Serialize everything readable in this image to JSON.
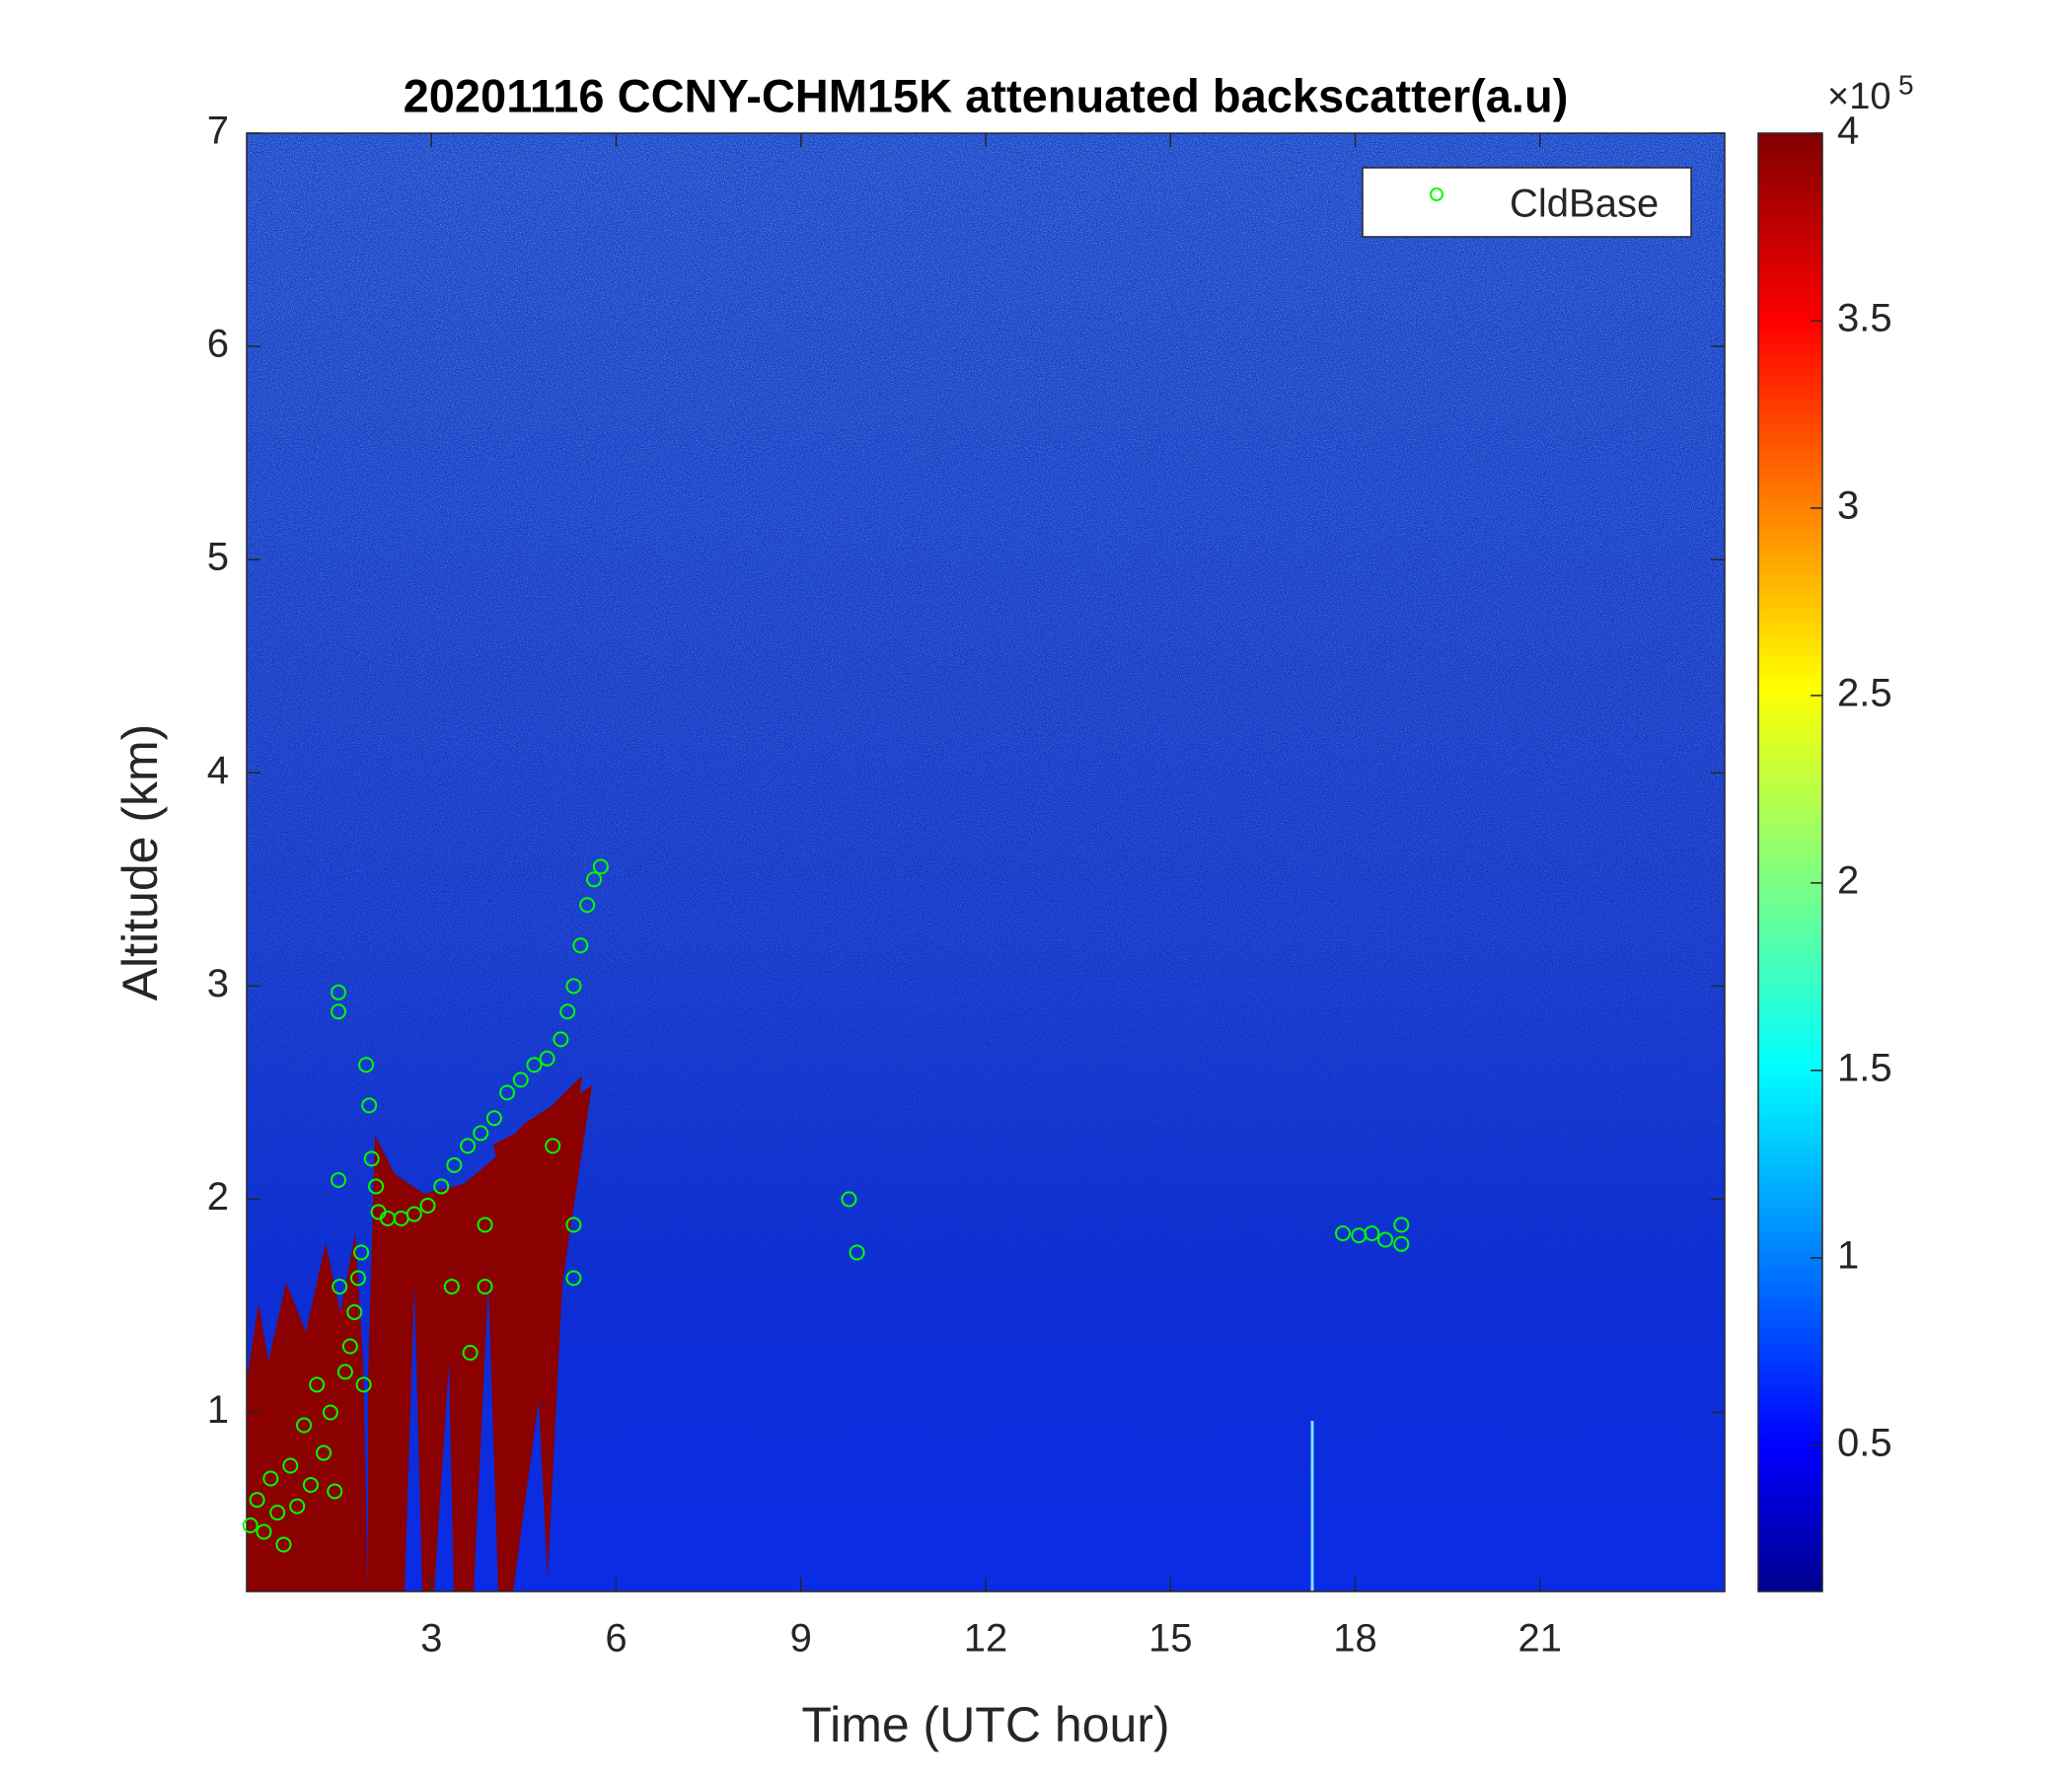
{
  "chart_data": {
    "type": "scatter",
    "title": "20201116 CCNY-CHM15K attenuated backscatter(a.u)",
    "xlabel": "Time (UTC hour)",
    "ylabel": "Altitude (km)",
    "xlim": [
      0,
      24
    ],
    "xticks": [
      3,
      6,
      9,
      12,
      15,
      18,
      21
    ],
    "ylim": [
      0.16,
      7
    ],
    "yticks": [
      1,
      2,
      3,
      4,
      5,
      6,
      7
    ],
    "legend": "northeast",
    "series": [
      {
        "name": "CldBase",
        "color": "#00ff00",
        "x": [
          0.06,
          0.17,
          0.28,
          0.39,
          0.5,
          0.6,
          0.71,
          0.82,
          0.93,
          1.04,
          1.14,
          1.25,
          1.36,
          1.43,
          1.49,
          1.49,
          1.49,
          1.51,
          1.6,
          1.68,
          1.75,
          1.81,
          1.86,
          1.9,
          1.94,
          1.99,
          2.03,
          2.1,
          2.14,
          2.29,
          2.51,
          2.72,
          2.94,
          3.16,
          3.37,
          3.59,
          3.8,
          4.02,
          4.23,
          4.45,
          4.67,
          4.88,
          5.1,
          5.21,
          5.31,
          5.42,
          5.53,
          5.64,
          5.75,
          3.33,
          3.63,
          3.87,
          3.87,
          5.31,
          5.31,
          4.97,
          9.78,
          9.91,
          17.8,
          18.06,
          18.27,
          18.49,
          18.75,
          18.75
        ],
        "y": [
          0.47,
          0.59,
          0.44,
          0.69,
          0.53,
          0.38,
          0.75,
          0.56,
          0.94,
          0.66,
          1.13,
          0.81,
          1.0,
          0.63,
          2.97,
          2.88,
          2.09,
          1.59,
          1.19,
          1.31,
          1.47,
          1.63,
          1.75,
          1.13,
          2.63,
          2.44,
          2.19,
          2.06,
          1.94,
          1.91,
          1.91,
          1.93,
          1.97,
          2.06,
          2.16,
          2.25,
          2.31,
          2.38,
          2.5,
          2.56,
          2.63,
          2.66,
          2.75,
          2.88,
          3.0,
          3.19,
          3.38,
          3.5,
          3.56,
          1.59,
          1.28,
          1.59,
          1.88,
          1.63,
          1.88,
          2.25,
          2.0,
          1.75,
          1.84,
          1.83,
          1.84,
          1.81,
          1.88,
          1.79
        ]
      }
    ],
    "colorbar": {
      "colormap": "jet",
      "clim": [
        0.11,
        4
      ],
      "ticks": [
        0.5,
        1,
        1.5,
        2,
        2.5,
        3,
        3.5,
        4
      ],
      "multiplier": "×10",
      "exponent": "5"
    }
  }
}
